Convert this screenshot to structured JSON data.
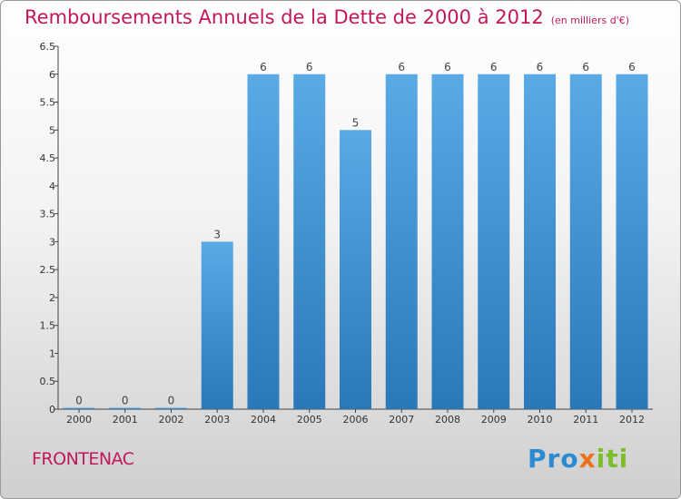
{
  "title": "Remboursements Annuels de la Dette de 2000 à 2012",
  "subtitle": "(en milliers d'€)",
  "commune": "FRONTENAC",
  "logo": {
    "part1": "Pro",
    "part2": "x",
    "part3": "iti"
  },
  "colors": {
    "title": "#c2185b",
    "bar_top": "#5aaae6",
    "bar_bottom": "#2a78b8"
  },
  "chart_data": {
    "type": "bar",
    "title": "Remboursements Annuels de la Dette de 2000 à 2012",
    "subtitle": "(en milliers d'€)",
    "xlabel": "",
    "ylabel": "",
    "categories": [
      "2000",
      "2001",
      "2002",
      "2003",
      "2004",
      "2005",
      "2006",
      "2007",
      "2008",
      "2009",
      "2010",
      "2011",
      "2012"
    ],
    "values": [
      0,
      0,
      0,
      3,
      6,
      6,
      5,
      6,
      6,
      6,
      6,
      6,
      6
    ],
    "value_labels": [
      "0",
      "0",
      "0",
      "3",
      "6",
      "6",
      "5",
      "6",
      "6",
      "6",
      "6",
      "6",
      "6"
    ],
    "ylim": [
      0,
      6.5
    ],
    "yticks": [
      "0",
      "0.5",
      "1",
      "1.5",
      "2",
      "2.5",
      "3",
      "3.5",
      "4",
      "4.5",
      "5",
      "5.5",
      "6",
      "6.5"
    ],
    "grid": false,
    "legend": "none"
  }
}
